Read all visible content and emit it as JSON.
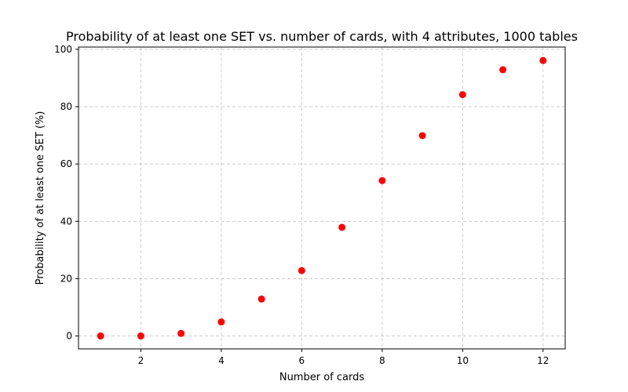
{
  "chart_data": {
    "type": "scatter",
    "title": "Probability of at least one SET vs. number of cards, with 4 attributes, 1000 tables",
    "xlabel": "Number of cards",
    "ylabel": "Probability of at least one SET (%)",
    "x": [
      1,
      2,
      3,
      4,
      5,
      6,
      7,
      8,
      9,
      10,
      11,
      12
    ],
    "y": [
      0,
      0,
      0.9,
      4.9,
      12.9,
      22.8,
      37.9,
      54.2,
      69.9,
      84.2,
      92.9,
      96.1
    ],
    "xlim": [
      0.45,
      12.55
    ],
    "ylim": [
      -4.5,
      100.8
    ],
    "xticks": [
      2,
      4,
      6,
      8,
      10,
      12
    ],
    "yticks": [
      0,
      20,
      40,
      60,
      80,
      100
    ],
    "grid": true,
    "marker_color": "#ff0000"
  }
}
